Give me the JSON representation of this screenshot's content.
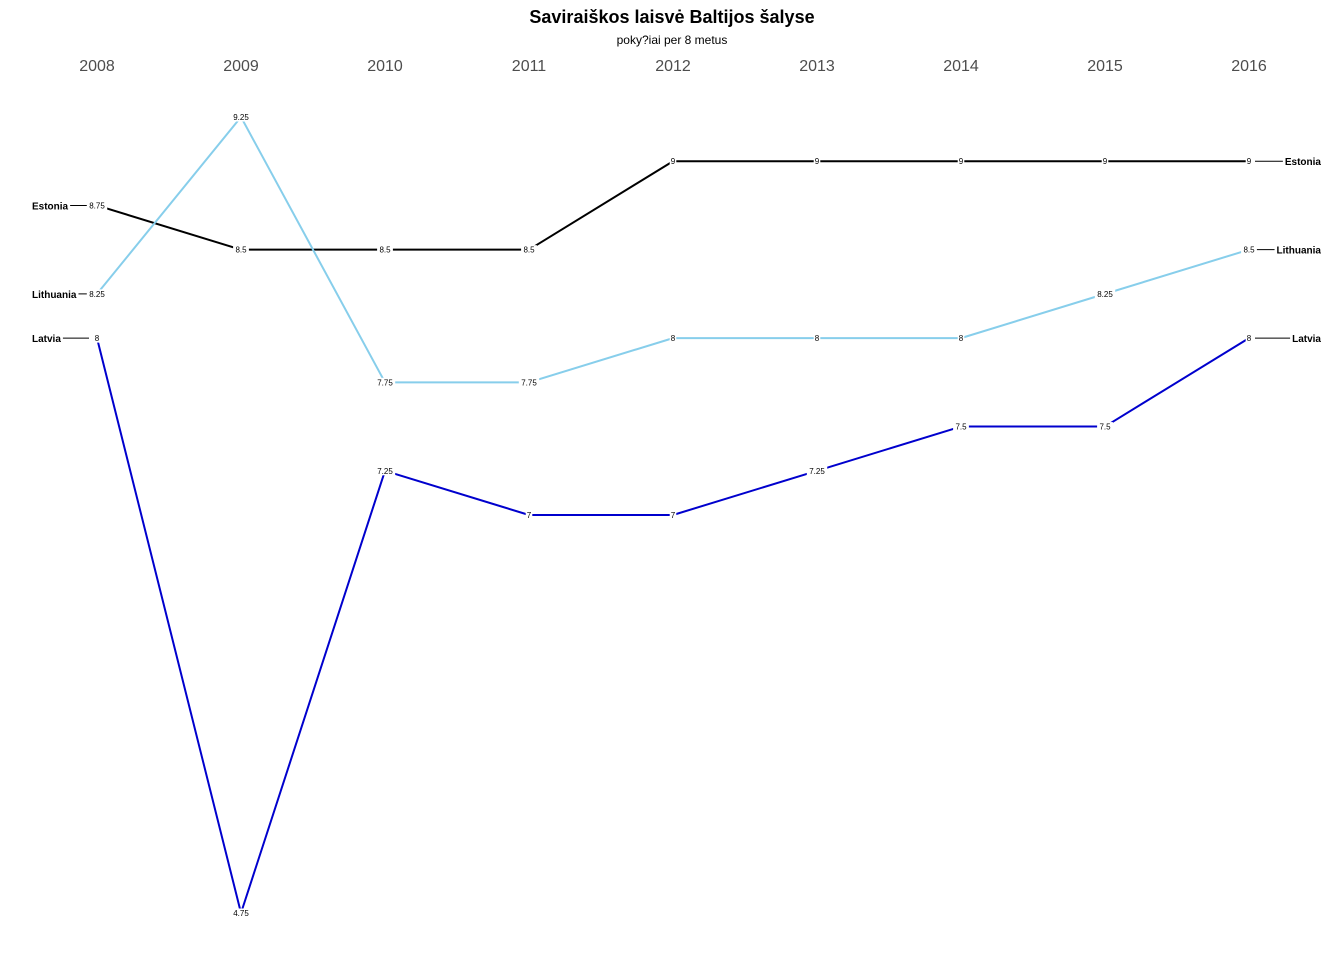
{
  "chart_data": {
    "type": "line",
    "title": "Saviraiškos laisvė Baltijos šalyse",
    "subtitle": "poky?iai per 8 metus",
    "xlabel": "",
    "ylabel": "",
    "x": [
      "2008",
      "2009",
      "2010",
      "2011",
      "2012",
      "2013",
      "2014",
      "2015",
      "2016"
    ],
    "ylim": [
      4.75,
      9.25
    ],
    "series": [
      {
        "name": "Estonia",
        "color": "#000000",
        "values": [
          8.75,
          8.5,
          8.5,
          8.5,
          9,
          9,
          9,
          9,
          9
        ],
        "labels": [
          "8.75",
          "8.5",
          "8.5",
          "8.5",
          "9",
          "9",
          "9",
          "9",
          "9"
        ]
      },
      {
        "name": "Lithuania",
        "color": "#87ceeb",
        "values": [
          8.25,
          9.25,
          7.75,
          7.75,
          8,
          8,
          8,
          8.25,
          8.5
        ],
        "labels": [
          "8.25",
          "9.25",
          "7.75",
          "7.75",
          "8",
          "8",
          "8",
          "8.25",
          "8.5"
        ]
      },
      {
        "name": "Latvia",
        "color": "#0000cd",
        "values": [
          8,
          4.75,
          7.25,
          7,
          7,
          7.25,
          7.5,
          7.5,
          8
        ],
        "labels": [
          "8",
          "4.75",
          "7.25",
          "7",
          "7",
          "7.25",
          "7.5",
          "7.5",
          "8"
        ]
      }
    ]
  }
}
